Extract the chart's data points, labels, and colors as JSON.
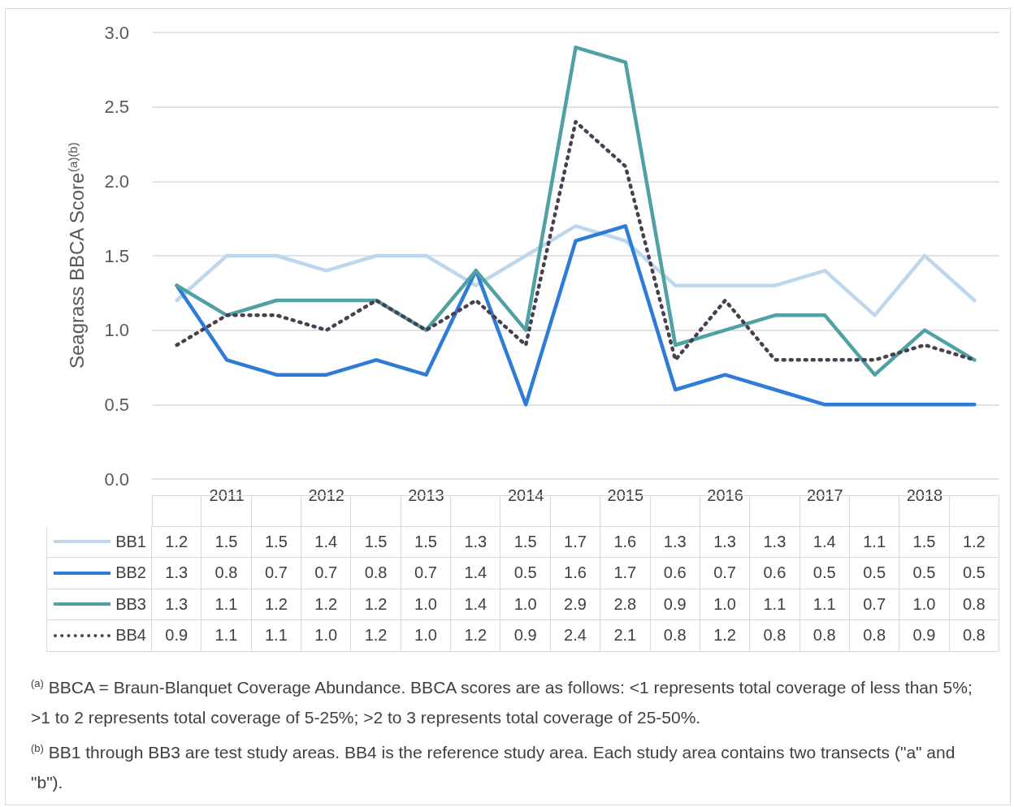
{
  "chart_data": {
    "type": "line",
    "ylabel": "Seagrass BBCA Score$^{(a)(b)}$",
    "categories": [
      null,
      "2011",
      null,
      "2012",
      null,
      "2013",
      null,
      "2014",
      null,
      "2015",
      null,
      "2016",
      null,
      "2017",
      null,
      "2018",
      null
    ],
    "series": [
      {
        "name": "BB1",
        "color": "#bdd7ee",
        "values": [
          1.2,
          1.5,
          1.5,
          1.4,
          1.5,
          1.5,
          1.3,
          1.5,
          1.7,
          1.6,
          1.3,
          1.3,
          1.3,
          1.4,
          1.1,
          1.5,
          1.2
        ],
        "value_labels": [
          "1.2",
          "1.5",
          "1.5",
          "1.4",
          "1.5",
          "1.5",
          "1.3",
          "1.5",
          "1.7",
          "1.6",
          "1.3",
          "1.3",
          "1.3",
          "1.4",
          "1.1",
          "1.5",
          "1.2"
        ]
      },
      {
        "name": "BB2",
        "color": "#2e7bd8",
        "values": [
          1.3,
          0.8,
          0.7,
          0.7,
          0.8,
          0.7,
          1.4,
          0.5,
          1.6,
          1.7,
          0.6,
          0.7,
          0.6,
          0.5,
          0.5,
          0.5,
          0.5
        ],
        "value_labels": [
          "1.3",
          "0.8",
          "0.7",
          "0.7",
          "0.8",
          "0.7",
          "1.4",
          "0.5",
          "1.6",
          "1.7",
          "0.6",
          "0.7",
          "0.6",
          "0.5",
          "0.5",
          "0.5",
          "0.5"
        ]
      },
      {
        "name": "BB3",
        "color": "#4fa1a4",
        "values": [
          1.3,
          1.1,
          1.2,
          1.2,
          1.2,
          1.0,
          1.4,
          1.0,
          2.9,
          2.8,
          0.9,
          1.0,
          1.1,
          1.1,
          0.7,
          1.0,
          0.8
        ],
        "value_labels": [
          "1.3",
          "1.1",
          "1.2",
          "1.2",
          "1.2",
          "1.0",
          "1.4",
          "1.0",
          "2.9",
          "2.8",
          "0.9",
          "1.0",
          "1.1",
          "1.1",
          "0.7",
          "1.0",
          "0.8"
        ]
      },
      {
        "name": "BB4",
        "color": "#4a3f50",
        "line_style": "dotted",
        "values": [
          0.9,
          1.1,
          1.1,
          1.0,
          1.2,
          1.0,
          1.2,
          0.9,
          2.4,
          2.1,
          0.8,
          1.2,
          0.8,
          0.8,
          0.8,
          0.9,
          0.8
        ],
        "value_labels": [
          "0.9",
          "1.1",
          "1.1",
          "1.0",
          "1.2",
          "1.0",
          "1.2",
          "0.9",
          "2.4",
          "2.1",
          "0.8",
          "1.2",
          "0.8",
          "0.8",
          "0.8",
          "0.9",
          "0.8"
        ]
      }
    ],
    "ylim": [
      0,
      3
    ],
    "yticks": [
      {
        "value": 0,
        "label": "0.0"
      },
      {
        "value": 0.5,
        "label": "0.5"
      },
      {
        "value": 1,
        "label": "1.0"
      },
      {
        "value": 1.5,
        "label": "1.5"
      },
      {
        "value": 2,
        "label": "2.0"
      },
      {
        "value": 2.5,
        "label": "2.5"
      },
      {
        "value": 3,
        "label": "3.0"
      }
    ],
    "grid": "y",
    "legend": "bottom",
    "marker": "none",
    "line_style": "solid",
    "annotations": [
      "$^{(a)}$ BBCA = Braun-Blanquet Coverage Abundance.  BBCA scores are as follows: <1 represents total coverage of less than 5%; >1 to 2 represents total coverage of 5-25%; >2 to 3 represents total coverage of 25-50%.",
      "$^{(b)}$ BB1 through BB3 are test study areas. BB4 is the reference study area.  Each study area contains two transects (\"a\" and \"b\")."
    ]
  }
}
